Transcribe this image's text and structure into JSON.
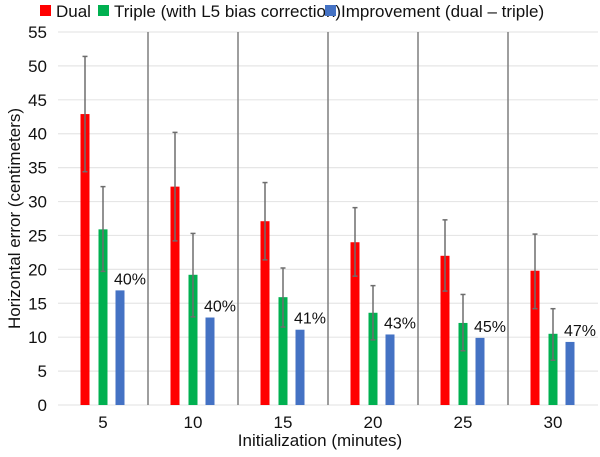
{
  "chart_data": {
    "type": "bar",
    "title": "",
    "xlabel": "Initialization (minutes)",
    "ylabel": "Horizontal error (centimeters)",
    "ylim": [
      0,
      55
    ],
    "yticks": [
      0,
      5,
      10,
      15,
      20,
      25,
      30,
      35,
      40,
      45,
      50,
      55
    ],
    "grid": true,
    "legend_position": "top",
    "categories": [
      "5",
      "10",
      "15",
      "20",
      "25",
      "30"
    ],
    "series": [
      {
        "name": "Dual",
        "color": "#ff0000",
        "values": [
          42.9,
          32.2,
          27.1,
          24.0,
          22.0,
          19.8
        ],
        "error_low": [
          34.4,
          24.2,
          21.4,
          19.0,
          16.8,
          14.2
        ],
        "error_high": [
          51.4,
          40.2,
          32.8,
          29.1,
          27.3,
          25.2
        ]
      },
      {
        "name": "Triple (with L5 bias correction)",
        "color": "#00b050",
        "values": [
          25.9,
          19.2,
          15.9,
          13.6,
          12.1,
          10.5
        ],
        "error_low": [
          19.7,
          13.0,
          11.5,
          9.6,
          8.0,
          6.6
        ],
        "error_high": [
          32.2,
          25.3,
          20.2,
          17.6,
          16.3,
          14.2
        ]
      },
      {
        "name": "Improvement (dual – triple)",
        "color": "#4472c4",
        "values": [
          16.9,
          12.9,
          11.1,
          10.4,
          9.9,
          9.3
        ],
        "labels": [
          "40%",
          "40%",
          "41%",
          "43%",
          "45%",
          "47%"
        ]
      }
    ]
  }
}
